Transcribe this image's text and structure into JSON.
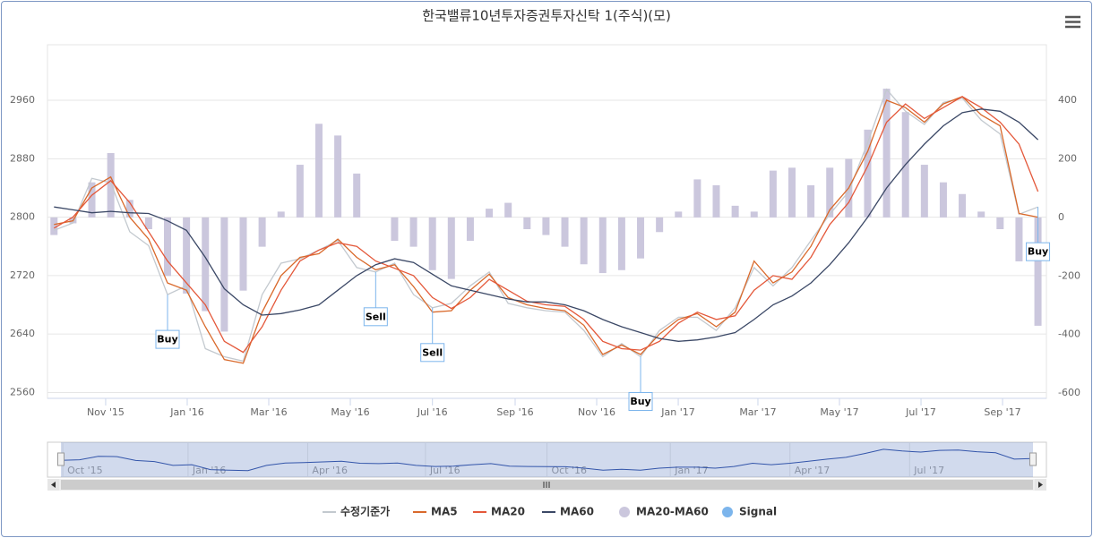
{
  "chart_data": {
    "type": "line",
    "title": "한국밸류10년투자증권투자신탁 1(주식)(모)",
    "categories": [
      null,
      null,
      null,
      null,
      null,
      null,
      null,
      null,
      null,
      null,
      null,
      null,
      null,
      null,
      null,
      null,
      null,
      null,
      null,
      null,
      null,
      null,
      null,
      null,
      null,
      null,
      null,
      null,
      null,
      null,
      null,
      null,
      null,
      null,
      null,
      null,
      null,
      null,
      null,
      null,
      null,
      null,
      null,
      null,
      null,
      null,
      null,
      null,
      null,
      null,
      null,
      null,
      null
    ],
    "xlim": [
      -0.25,
      52.4
    ],
    "xticks": [
      {
        "value": 2.73,
        "label": "Nov '15"
      },
      {
        "value": 7.04,
        "label": "Jan '16"
      },
      {
        "value": 11.35,
        "label": "Mar '16"
      },
      {
        "value": 15.66,
        "label": "May '16"
      },
      {
        "value": 20.0,
        "label": "Jul '16"
      },
      {
        "value": 24.37,
        "label": "Sep '16"
      },
      {
        "value": 28.68,
        "label": "Nov '16"
      },
      {
        "value": 32.99,
        "label": "Jan '17"
      },
      {
        "value": 37.2,
        "label": "Mar '17"
      },
      {
        "value": 41.51,
        "label": "May '17"
      },
      {
        "value": 45.82,
        "label": "Jul '17"
      },
      {
        "value": 50.13,
        "label": "Sep '17"
      }
    ],
    "ylim": [
      2552,
      3036
    ],
    "yticks": [
      2560,
      2640,
      2720,
      2800,
      2880,
      2960
    ],
    "y2lim": [
      -618,
      590
    ],
    "y2ticks": [
      -600,
      -400,
      -200,
      0,
      200,
      400
    ],
    "grid": true,
    "series": [
      {
        "name": "MA20-MA60",
        "type": "column",
        "axis": "y2",
        "color": "#cbc7dd",
        "values": [
          -60,
          -20,
          120,
          220,
          60,
          -40,
          -200,
          -260,
          -320,
          -390,
          -250,
          -100,
          20,
          180,
          320,
          280,
          150,
          0,
          -80,
          -100,
          -180,
          -210,
          -80,
          30,
          50,
          -40,
          -60,
          -100,
          -160,
          -190,
          -180,
          -140,
          -50,
          20,
          130,
          110,
          40,
          20,
          160,
          170,
          110,
          170,
          200,
          300,
          440,
          360,
          180,
          120,
          80,
          20,
          -40,
          -150,
          -370
        ]
      },
      {
        "name": "수정기준가",
        "color": "#c3c9cf",
        "values": [
          2782,
          2792,
          2853,
          2847,
          2780,
          2761,
          2694,
          2706,
          2620,
          2609,
          2603,
          2694,
          2737,
          2743,
          2755,
          2768,
          2731,
          2725,
          2737,
          2694,
          2676,
          2682,
          2706,
          2725,
          2682,
          2676,
          2672,
          2670,
          2645,
          2609,
          2627,
          2609,
          2645,
          2663,
          2663,
          2645,
          2676,
          2731,
          2706,
          2731,
          2768,
          2804,
          2835,
          2902,
          2975,
          2945,
          2927,
          2957,
          2963,
          2933,
          2914,
          2804,
          2814
        ]
      },
      {
        "name": "MA5",
        "color": "#d9692b",
        "values": [
          2790,
          2795,
          2840,
          2855,
          2800,
          2770,
          2710,
          2700,
          2650,
          2605,
          2600,
          2670,
          2720,
          2745,
          2750,
          2770,
          2745,
          2728,
          2735,
          2705,
          2670,
          2672,
          2700,
          2722,
          2690,
          2680,
          2675,
          2672,
          2652,
          2612,
          2625,
          2612,
          2640,
          2660,
          2668,
          2650,
          2670,
          2740,
          2710,
          2725,
          2760,
          2810,
          2840,
          2890,
          2960,
          2950,
          2930,
          2955,
          2965,
          2940,
          2925,
          2805,
          2800
        ]
      },
      {
        "name": "MA20",
        "color": "#e4583a",
        "values": [
          2785,
          2800,
          2830,
          2850,
          2820,
          2780,
          2740,
          2710,
          2680,
          2630,
          2615,
          2650,
          2700,
          2740,
          2755,
          2765,
          2760,
          2740,
          2730,
          2720,
          2690,
          2675,
          2690,
          2715,
          2700,
          2685,
          2680,
          2678,
          2660,
          2630,
          2620,
          2618,
          2630,
          2655,
          2670,
          2660,
          2665,
          2700,
          2720,
          2715,
          2745,
          2790,
          2820,
          2870,
          2930,
          2955,
          2935,
          2950,
          2965,
          2950,
          2930,
          2900,
          2835
        ]
      },
      {
        "name": "MA60",
        "color": "#3b4866",
        "values": [
          2814,
          2810,
          2806,
          2808,
          2806,
          2805,
          2795,
          2782,
          2745,
          2702,
          2680,
          2666,
          2668,
          2673,
          2680,
          2700,
          2720,
          2735,
          2743,
          2738,
          2722,
          2706,
          2700,
          2694,
          2688,
          2684,
          2684,
          2680,
          2672,
          2660,
          2650,
          2642,
          2634,
          2630,
          2632,
          2636,
          2642,
          2660,
          2680,
          2692,
          2710,
          2735,
          2765,
          2800,
          2840,
          2872,
          2900,
          2925,
          2943,
          2948,
          2945,
          2930,
          2906
        ]
      }
    ],
    "signals": {
      "name": "Signal",
      "color": "#7cb5ec",
      "points": [
        {
          "index": 6,
          "label": "Buy"
        },
        {
          "index": 17,
          "label": "Sell"
        },
        {
          "index": 20,
          "label": "Sell"
        },
        {
          "index": 31,
          "label": "Buy"
        },
        {
          "index": 52,
          "label": "Buy"
        }
      ]
    },
    "navigator": {
      "xticks": [
        {
          "value": 0.1,
          "label": "Oct '15"
        },
        {
          "value": 6.8,
          "label": "Jan '16"
        },
        {
          "value": 13.2,
          "label": "Apr '16"
        },
        {
          "value": 19.5,
          "label": "Jul '16"
        },
        {
          "value": 26,
          "label": "Oct '16"
        },
        {
          "value": 32.6,
          "label": "Jan '17"
        },
        {
          "value": 39,
          "label": "Apr '17"
        },
        {
          "value": 45.4,
          "label": "Jul '17"
        }
      ]
    }
  }
}
